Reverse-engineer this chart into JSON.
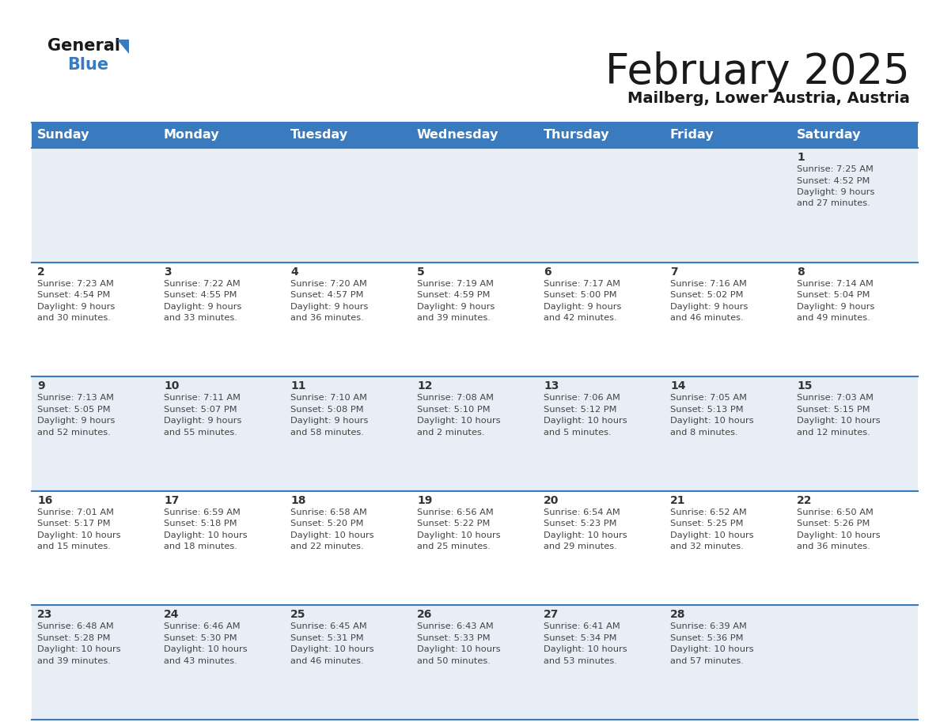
{
  "title": "February 2025",
  "subtitle": "Mailberg, Lower Austria, Austria",
  "header_bg": "#3a7bbf",
  "header_text_color": "#ffffff",
  "day_names": [
    "Sunday",
    "Monday",
    "Tuesday",
    "Wednesday",
    "Thursday",
    "Friday",
    "Saturday"
  ],
  "alt_row_bg": "#e8eef5",
  "white_bg": "#ffffff",
  "cell_border": "#3a7bbf",
  "date_color": "#333333",
  "info_color": "#444444",
  "title_color": "#1a1a1a",
  "subtitle_color": "#1a1a1a",
  "days": [
    {
      "date": 1,
      "row": 0,
      "col": 6,
      "sunrise": "7:25 AM",
      "sunset": "4:52 PM",
      "daylight": "9 hours and 27 minutes."
    },
    {
      "date": 2,
      "row": 1,
      "col": 0,
      "sunrise": "7:23 AM",
      "sunset": "4:54 PM",
      "daylight": "9 hours and 30 minutes."
    },
    {
      "date": 3,
      "row": 1,
      "col": 1,
      "sunrise": "7:22 AM",
      "sunset": "4:55 PM",
      "daylight": "9 hours and 33 minutes."
    },
    {
      "date": 4,
      "row": 1,
      "col": 2,
      "sunrise": "7:20 AM",
      "sunset": "4:57 PM",
      "daylight": "9 hours and 36 minutes."
    },
    {
      "date": 5,
      "row": 1,
      "col": 3,
      "sunrise": "7:19 AM",
      "sunset": "4:59 PM",
      "daylight": "9 hours and 39 minutes."
    },
    {
      "date": 6,
      "row": 1,
      "col": 4,
      "sunrise": "7:17 AM",
      "sunset": "5:00 PM",
      "daylight": "9 hours and 42 minutes."
    },
    {
      "date": 7,
      "row": 1,
      "col": 5,
      "sunrise": "7:16 AM",
      "sunset": "5:02 PM",
      "daylight": "9 hours and 46 minutes."
    },
    {
      "date": 8,
      "row": 1,
      "col": 6,
      "sunrise": "7:14 AM",
      "sunset": "5:04 PM",
      "daylight": "9 hours and 49 minutes."
    },
    {
      "date": 9,
      "row": 2,
      "col": 0,
      "sunrise": "7:13 AM",
      "sunset": "5:05 PM",
      "daylight": "9 hours and 52 minutes."
    },
    {
      "date": 10,
      "row": 2,
      "col": 1,
      "sunrise": "7:11 AM",
      "sunset": "5:07 PM",
      "daylight": "9 hours and 55 minutes."
    },
    {
      "date": 11,
      "row": 2,
      "col": 2,
      "sunrise": "7:10 AM",
      "sunset": "5:08 PM",
      "daylight": "9 hours and 58 minutes."
    },
    {
      "date": 12,
      "row": 2,
      "col": 3,
      "sunrise": "7:08 AM",
      "sunset": "5:10 PM",
      "daylight": "10 hours and 2 minutes."
    },
    {
      "date": 13,
      "row": 2,
      "col": 4,
      "sunrise": "7:06 AM",
      "sunset": "5:12 PM",
      "daylight": "10 hours and 5 minutes."
    },
    {
      "date": 14,
      "row": 2,
      "col": 5,
      "sunrise": "7:05 AM",
      "sunset": "5:13 PM",
      "daylight": "10 hours and 8 minutes."
    },
    {
      "date": 15,
      "row": 2,
      "col": 6,
      "sunrise": "7:03 AM",
      "sunset": "5:15 PM",
      "daylight": "10 hours and 12 minutes."
    },
    {
      "date": 16,
      "row": 3,
      "col": 0,
      "sunrise": "7:01 AM",
      "sunset": "5:17 PM",
      "daylight": "10 hours and 15 minutes."
    },
    {
      "date": 17,
      "row": 3,
      "col": 1,
      "sunrise": "6:59 AM",
      "sunset": "5:18 PM",
      "daylight": "10 hours and 18 minutes."
    },
    {
      "date": 18,
      "row": 3,
      "col": 2,
      "sunrise": "6:58 AM",
      "sunset": "5:20 PM",
      "daylight": "10 hours and 22 minutes."
    },
    {
      "date": 19,
      "row": 3,
      "col": 3,
      "sunrise": "6:56 AM",
      "sunset": "5:22 PM",
      "daylight": "10 hours and 25 minutes."
    },
    {
      "date": 20,
      "row": 3,
      "col": 4,
      "sunrise": "6:54 AM",
      "sunset": "5:23 PM",
      "daylight": "10 hours and 29 minutes."
    },
    {
      "date": 21,
      "row": 3,
      "col": 5,
      "sunrise": "6:52 AM",
      "sunset": "5:25 PM",
      "daylight": "10 hours and 32 minutes."
    },
    {
      "date": 22,
      "row": 3,
      "col": 6,
      "sunrise": "6:50 AM",
      "sunset": "5:26 PM",
      "daylight": "10 hours and 36 minutes."
    },
    {
      "date": 23,
      "row": 4,
      "col": 0,
      "sunrise": "6:48 AM",
      "sunset": "5:28 PM",
      "daylight": "10 hours and 39 minutes."
    },
    {
      "date": 24,
      "row": 4,
      "col": 1,
      "sunrise": "6:46 AM",
      "sunset": "5:30 PM",
      "daylight": "10 hours and 43 minutes."
    },
    {
      "date": 25,
      "row": 4,
      "col": 2,
      "sunrise": "6:45 AM",
      "sunset": "5:31 PM",
      "daylight": "10 hours and 46 minutes."
    },
    {
      "date": 26,
      "row": 4,
      "col": 3,
      "sunrise": "6:43 AM",
      "sunset": "5:33 PM",
      "daylight": "10 hours and 50 minutes."
    },
    {
      "date": 27,
      "row": 4,
      "col": 4,
      "sunrise": "6:41 AM",
      "sunset": "5:34 PM",
      "daylight": "10 hours and 53 minutes."
    },
    {
      "date": 28,
      "row": 4,
      "col": 5,
      "sunrise": "6:39 AM",
      "sunset": "5:36 PM",
      "daylight": "10 hours and 57 minutes."
    }
  ],
  "num_rows": 5,
  "cell_text_fontsize": 8.2,
  "date_fontsize": 10.0,
  "header_fontsize": 11.5
}
